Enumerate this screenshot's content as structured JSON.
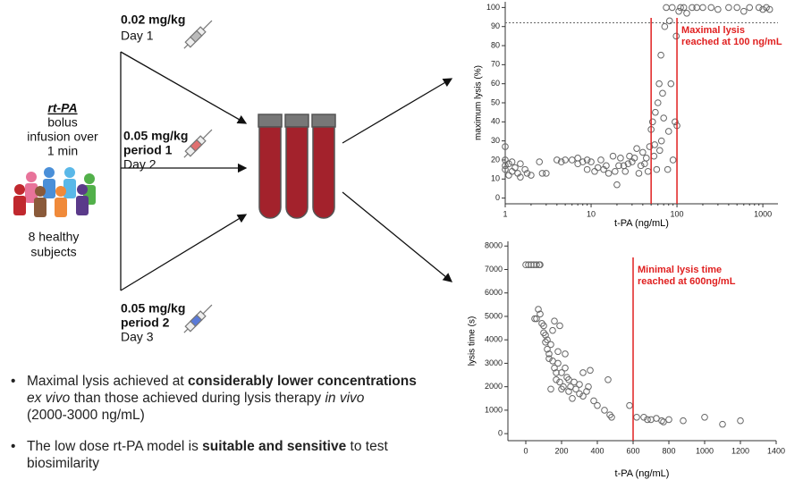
{
  "diagram": {
    "drug": "rt-PA",
    "drug_detail": [
      "bolus",
      "infusion over",
      "1 min"
    ],
    "subjects": [
      "8 healthy",
      "subjects"
    ],
    "doses": [
      {
        "dose": "0.02 mg/kg",
        "day": "Day 1"
      },
      {
        "dose": "0.05 mg/kg",
        "period": "period 1",
        "day": "Day 2"
      },
      {
        "dose": "0.05 mg/kg",
        "period": "period 2",
        "day": "Day 3"
      }
    ]
  },
  "bullets": [
    [
      "Maximal  lysis achieved at",
      "considerably lower concentrations",
      "ex vivo",
      "than those achieved during lysis therapy",
      "in vivo",
      "(2000-3000 ng/mL)"
    ],
    [
      "The low dose rt-PA model is",
      "suitable and sensitive",
      "to test biosimilarity"
    ]
  ],
  "chart_data": [
    {
      "type": "scatter",
      "x_label": "t-PA (ng/mL)",
      "y_label": "maximum lysis (%)",
      "log_x": true,
      "xlim": [
        1,
        1500
      ],
      "ylim": [
        -3,
        103
      ],
      "xticks": [
        1,
        10,
        100,
        1000
      ],
      "yticks": [
        0,
        10,
        20,
        30,
        40,
        50,
        60,
        70,
        80,
        90,
        100
      ],
      "color": "#666666",
      "hline": 92,
      "vlines": [
        50,
        100
      ],
      "line_color": "#e02020",
      "annotation": [
        "Maximal lysis",
        "reached at 100 ng/mL"
      ],
      "x": [
        1,
        1,
        1,
        1,
        1.1,
        1.1,
        1.2,
        1.2,
        1.3,
        1.4,
        1.5,
        1.5,
        1.7,
        1.8,
        2,
        2.5,
        2.7,
        3,
        4,
        4.5,
        5,
        6,
        7,
        7,
        8,
        9,
        9,
        10,
        11,
        12,
        13,
        14,
        15,
        16,
        18,
        19,
        20,
        21,
        22,
        24,
        25,
        27,
        28,
        30,
        32,
        34,
        36,
        38,
        40,
        42,
        44,
        46,
        48,
        50,
        52,
        54,
        55,
        56,
        58,
        60,
        62,
        63,
        65,
        66,
        68,
        70,
        72,
        75,
        78,
        80,
        82,
        85,
        88,
        90,
        95,
        98,
        100,
        105,
        110,
        120,
        130,
        150,
        170,
        200,
        250,
        300,
        400,
        500,
        600,
        700,
        900,
        1000,
        1100,
        1200
      ],
      "y": [
        27,
        20,
        17,
        15,
        18,
        12,
        19,
        14,
        16,
        13,
        18,
        11,
        15,
        13,
        12,
        19,
        13,
        13,
        20,
        19,
        20,
        20,
        21,
        18,
        19,
        20,
        15,
        19,
        14,
        16,
        20,
        15,
        17,
        13,
        22,
        14,
        7,
        17,
        21,
        17,
        14,
        18,
        22,
        19,
        21,
        26,
        13,
        17,
        24,
        18,
        21,
        14,
        27,
        36,
        40,
        22,
        28,
        45,
        15,
        50,
        60,
        25,
        75,
        30,
        55,
        42,
        90,
        100,
        15,
        35,
        93,
        60,
        100,
        20,
        40,
        85,
        38,
        98,
        100,
        100,
        97,
        100,
        100,
        100,
        100,
        99,
        100,
        100,
        98,
        100,
        100,
        99,
        100,
        99
      ]
    },
    {
      "type": "scatter",
      "x_label": "t-PA (ng/mL)",
      "y_label": "lysis time (s)",
      "log_x": false,
      "xlim": [
        -100,
        1400
      ],
      "ylim": [
        -300,
        8200
      ],
      "xticks": [
        0,
        200,
        400,
        600,
        800,
        1000,
        1200,
        1400
      ],
      "yticks": [
        0,
        1000,
        2000,
        3000,
        4000,
        5000,
        6000,
        7000,
        8000
      ],
      "color": "#666666",
      "vlines": [
        600
      ],
      "line_color": "#e02020",
      "annotation": [
        "Minimal lysis time",
        "reached at 600ng/mL"
      ],
      "x": [
        0,
        15,
        30,
        45,
        60,
        75,
        80,
        50,
        60,
        70,
        80,
        90,
        100,
        100,
        110,
        110,
        120,
        120,
        130,
        130,
        140,
        140,
        150,
        150,
        160,
        160,
        170,
        170,
        180,
        180,
        190,
        190,
        200,
        200,
        210,
        220,
        220,
        230,
        240,
        240,
        250,
        260,
        270,
        280,
        300,
        300,
        320,
        320,
        340,
        350,
        360,
        380,
        400,
        440,
        460,
        470,
        480,
        580,
        620,
        660,
        680,
        700,
        730,
        760,
        770,
        800,
        880,
        1000,
        1100,
        1200
      ],
      "y": [
        7200,
        7200,
        7200,
        7200,
        7200,
        7200,
        7200,
        4900,
        4900,
        5300,
        5100,
        4700,
        4600,
        4300,
        4200,
        3900,
        4000,
        3600,
        3400,
        3200,
        3800,
        1900,
        3100,
        4400,
        2800,
        4800,
        2600,
        2300,
        3500,
        3000,
        4600,
        2200,
        2600,
        1900,
        2000,
        3400,
        2800,
        2400,
        1800,
        2300,
        2000,
        1500,
        2200,
        1900,
        2100,
        1700,
        2600,
        1600,
        1800,
        2000,
        2700,
        1400,
        1200,
        1000,
        2300,
        800,
        700,
        1200,
        700,
        700,
        600,
        600,
        650,
        550,
        500,
        600,
        550,
        700,
        400,
        550
      ]
    }
  ]
}
